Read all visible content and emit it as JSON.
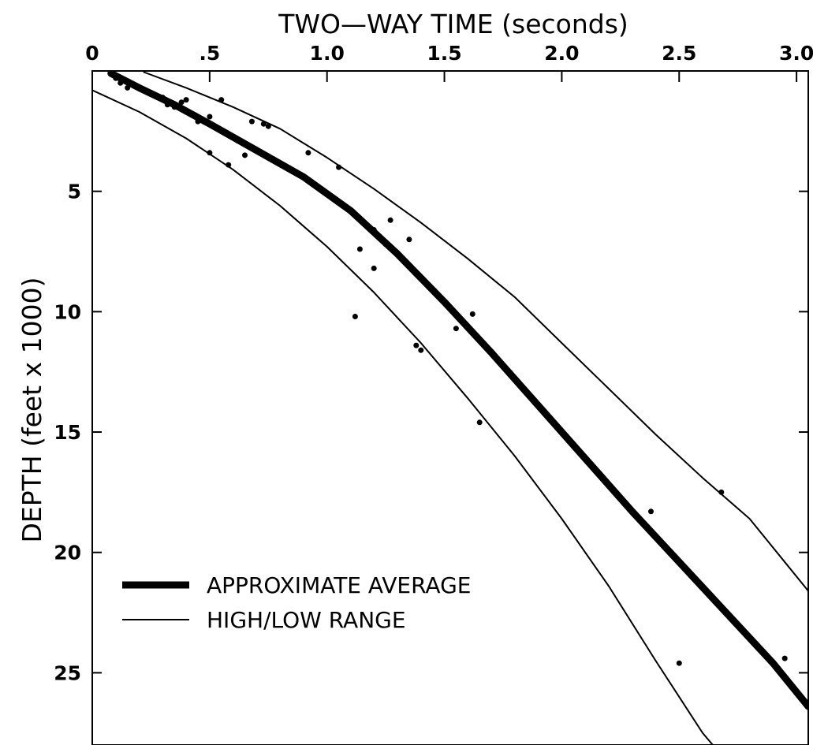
{
  "chart_data": {
    "type": "line",
    "title": "",
    "xlabel": "TWO—WAY TIME (seconds)",
    "ylabel": "DEPTH (feet x 1000)",
    "xlim": [
      0,
      3.05
    ],
    "ylim": [
      0,
      28
    ],
    "x_axis_position": "top",
    "y_inverted": true,
    "grid": false,
    "x_ticks": [
      0,
      0.5,
      1.0,
      1.5,
      2.0,
      2.5,
      3.0
    ],
    "x_tick_labels": [
      "0",
      ".5",
      "1.0",
      "1.5",
      "2.0",
      "2.5",
      "3.0"
    ],
    "y_ticks": [
      5,
      10,
      15,
      20,
      25
    ],
    "y_tick_labels": [
      "5",
      "10",
      "15",
      "20",
      "25"
    ],
    "legend_placement": "bottom-left",
    "colors": {
      "ink": "#000000",
      "background": "#ffffff"
    },
    "series": [
      {
        "name": "APPROXIMATE AVERAGE",
        "style": "thick",
        "points": [
          [
            0.08,
            0.1
          ],
          [
            0.2,
            0.7
          ],
          [
            0.35,
            1.4
          ],
          [
            0.5,
            2.2
          ],
          [
            0.7,
            3.3
          ],
          [
            0.9,
            4.4
          ],
          [
            1.1,
            5.8
          ],
          [
            1.3,
            7.6
          ],
          [
            1.5,
            9.6
          ],
          [
            1.7,
            11.7
          ],
          [
            1.9,
            13.9
          ],
          [
            2.1,
            16.1
          ],
          [
            2.3,
            18.3
          ],
          [
            2.5,
            20.4
          ],
          [
            2.7,
            22.5
          ],
          [
            2.9,
            24.6
          ],
          [
            3.05,
            26.4
          ]
        ]
      },
      {
        "name": "HIGH/LOW RANGE",
        "style": "thin",
        "points": [
          [
            0.22,
            0.05
          ],
          [
            0.4,
            0.7
          ],
          [
            0.6,
            1.5
          ],
          [
            0.8,
            2.4
          ],
          [
            1.0,
            3.6
          ],
          [
            1.2,
            4.9
          ],
          [
            1.4,
            6.3
          ],
          [
            1.6,
            7.8
          ],
          [
            1.8,
            9.4
          ],
          [
            2.0,
            11.3
          ],
          [
            2.2,
            13.2
          ],
          [
            2.4,
            15.1
          ],
          [
            2.6,
            16.9
          ],
          [
            2.8,
            18.6
          ],
          [
            3.05,
            21.6
          ]
        ]
      },
      {
        "name": "",
        "style": "thin",
        "points": [
          [
            0.0,
            0.8
          ],
          [
            0.2,
            1.7
          ],
          [
            0.4,
            2.8
          ],
          [
            0.6,
            4.1
          ],
          [
            0.8,
            5.6
          ],
          [
            1.0,
            7.3
          ],
          [
            1.2,
            9.2
          ],
          [
            1.4,
            11.3
          ],
          [
            1.6,
            13.6
          ],
          [
            1.8,
            16.0
          ],
          [
            2.0,
            18.6
          ],
          [
            2.2,
            21.4
          ],
          [
            2.4,
            24.5
          ],
          [
            2.6,
            27.5
          ],
          [
            2.73,
            29.0
          ]
        ]
      }
    ],
    "scatter_points": [
      [
        0.1,
        0.3
      ],
      [
        0.12,
        0.5
      ],
      [
        0.15,
        0.7
      ],
      [
        0.25,
        0.9
      ],
      [
        0.3,
        1.1
      ],
      [
        0.32,
        1.4
      ],
      [
        0.35,
        1.5
      ],
      [
        0.38,
        1.3
      ],
      [
        0.4,
        1.2
      ],
      [
        0.45,
        2.1
      ],
      [
        0.5,
        1.9
      ],
      [
        0.52,
        2.3
      ],
      [
        0.5,
        3.4
      ],
      [
        0.55,
        1.2
      ],
      [
        0.58,
        3.9
      ],
      [
        0.62,
        2.9
      ],
      [
        0.65,
        3.5
      ],
      [
        0.68,
        2.1
      ],
      [
        0.73,
        2.2
      ],
      [
        0.75,
        2.3
      ],
      [
        0.92,
        3.4
      ],
      [
        1.05,
        4.0
      ],
      [
        1.12,
        10.2
      ],
      [
        1.14,
        7.4
      ],
      [
        1.2,
        6.6
      ],
      [
        1.2,
        8.2
      ],
      [
        1.25,
        7.2
      ],
      [
        1.27,
        6.2
      ],
      [
        1.35,
        7.0
      ],
      [
        1.38,
        11.4
      ],
      [
        1.4,
        11.6
      ],
      [
        1.55,
        10.7
      ],
      [
        1.62,
        10.1
      ],
      [
        1.65,
        14.6
      ],
      [
        2.38,
        18.3
      ],
      [
        2.5,
        24.6
      ],
      [
        2.68,
        17.5
      ],
      [
        2.95,
        24.4
      ]
    ]
  }
}
